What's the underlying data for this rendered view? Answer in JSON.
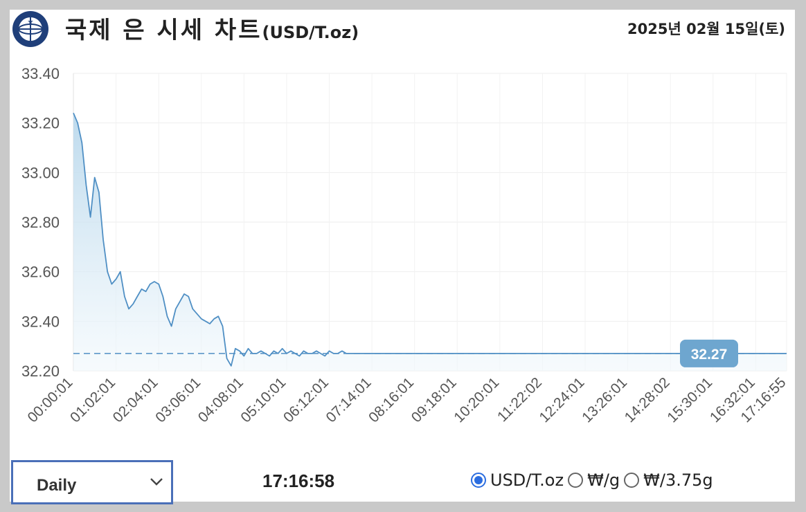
{
  "header": {
    "title": "국제 은 시세 차트",
    "unit": "(USD/T.oz)",
    "date": "2025년 02월 15일(토)"
  },
  "chart_data": {
    "type": "area",
    "title": "국제 은 시세 차트(USD/T.oz)",
    "xlabel": "",
    "ylabel": "",
    "ylim": [
      32.2,
      33.4
    ],
    "y_ticks": [
      "33.40",
      "33.20",
      "33.00",
      "32.80",
      "32.60",
      "32.40",
      "32.20"
    ],
    "x_ticks": [
      "00:00:01",
      "01:02:01",
      "02:04:01",
      "03:06:01",
      "04:08:01",
      "05:10:01",
      "06:12:01",
      "07:14:01",
      "08:16:01",
      "09:18:01",
      "10:20:01",
      "11:22:02",
      "12:24:01",
      "13:26:01",
      "14:28:02",
      "15:30:01",
      "16:32:01",
      "17:16:55"
    ],
    "grid": true,
    "reference_line": 32.27,
    "current_value_label": "32.27",
    "colors": {
      "line": "#4f8fc4",
      "fill_top": "#b6d6eb",
      "fill_bottom": "#f1f8fc",
      "badge": "#6ea6cf"
    },
    "series": [
      {
        "x": [
          "00:00:01",
          "00:06:12",
          "00:12:24",
          "00:18:35",
          "00:24:46",
          "00:30:58",
          "00:37:09",
          "00:43:20",
          "00:49:32",
          "00:55:43",
          "01:02:01",
          "01:08:12",
          "01:14:23",
          "01:20:35",
          "01:26:46",
          "01:32:57",
          "01:39:08",
          "01:45:20",
          "01:51:31",
          "01:57:42",
          "02:04:01",
          "02:10:12",
          "02:16:23",
          "02:22:35",
          "02:28:46",
          "02:34:57",
          "02:41:08",
          "02:47:20",
          "02:53:31",
          "02:59:42",
          "03:06:01",
          "03:12:12",
          "03:18:23",
          "03:24:35",
          "03:30:46",
          "03:36:57",
          "03:43:08",
          "03:49:20",
          "03:55:31",
          "04:01:42",
          "04:08:01",
          "04:14:12",
          "04:20:23",
          "04:26:35",
          "04:32:46",
          "04:38:57",
          "04:45:08",
          "04:51:20",
          "04:57:31",
          "05:03:42",
          "05:10:01",
          "05:16:12",
          "05:22:23",
          "05:28:35",
          "05:34:46",
          "05:40:57",
          "05:47:08",
          "05:53:20",
          "05:59:31",
          "06:05:42",
          "06:12:01",
          "06:18:12",
          "06:24:23",
          "06:30:35",
          "06:36:46",
          "06:42:57",
          "17:16:55"
        ],
        "values": [
          33.24,
          33.2,
          33.12,
          32.95,
          32.82,
          32.98,
          32.92,
          32.73,
          32.6,
          32.55,
          32.57,
          32.6,
          32.5,
          32.45,
          32.47,
          32.5,
          32.53,
          32.52,
          32.55,
          32.56,
          32.55,
          32.5,
          32.42,
          32.38,
          32.45,
          32.48,
          32.51,
          32.5,
          32.45,
          32.43,
          32.41,
          32.4,
          32.39,
          32.41,
          32.42,
          32.38,
          32.25,
          32.22,
          32.29,
          32.28,
          32.26,
          32.29,
          32.27,
          32.27,
          32.28,
          32.27,
          32.26,
          32.28,
          32.27,
          32.29,
          32.27,
          32.28,
          32.27,
          32.26,
          32.28,
          32.27,
          32.27,
          32.28,
          32.27,
          32.26,
          32.28,
          32.27,
          32.27,
          32.28,
          32.27,
          32.27,
          32.27
        ]
      }
    ]
  },
  "controls": {
    "period_selected": "Daily",
    "clock": "17:16:58",
    "unit_options": [
      "USD/T.oz",
      "₩/g",
      "₩/3.75g"
    ],
    "unit_selected_index": 0
  }
}
